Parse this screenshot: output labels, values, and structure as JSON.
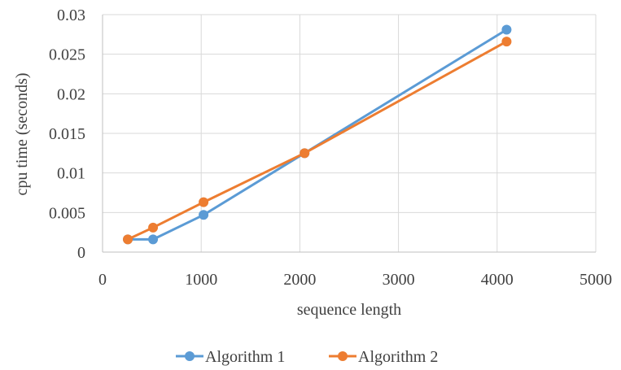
{
  "chart_data": {
    "type": "line",
    "title": "",
    "xlabel": "sequence length",
    "ylabel": "cpu time (seconds)",
    "xlim": [
      0,
      5000
    ],
    "ylim": [
      0,
      0.03
    ],
    "x_ticks": [
      "0",
      "1000",
      "2000",
      "3000",
      "4000",
      "5000"
    ],
    "y_ticks": [
      "0",
      "0.005",
      "0.01",
      "0.015",
      "0.02",
      "0.025",
      "0.03"
    ],
    "grid": true,
    "legend_position": "bottom",
    "series": [
      {
        "name": "Algorithm 1",
        "color": "#5b9bd5",
        "x": [
          256,
          512,
          1024,
          2048,
          4096
        ],
        "y": [
          0.0016,
          0.0016,
          0.0047,
          0.0125,
          0.0281
        ]
      },
      {
        "name": "Algorithm 2",
        "color": "#ed7d31",
        "x": [
          256,
          512,
          1024,
          2048,
          4096
        ],
        "y": [
          0.0016,
          0.0031,
          0.0063,
          0.0125,
          0.0266
        ]
      }
    ]
  }
}
